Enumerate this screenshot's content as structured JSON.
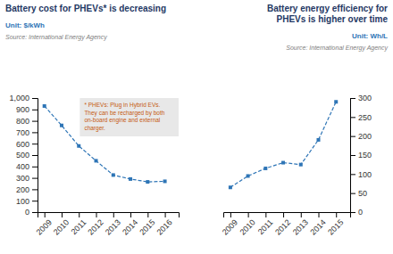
{
  "chart_data": [
    {
      "type": "line",
      "title": "Battery cost for PHEVs* is decreasing",
      "subtitle": "Unit: $/kWh",
      "annotations": [
        "Source: International Energy Agency",
        "* PHEVs: Plug in Hybrid EVs.\nThey can be recharged by both\non-board engine and external\ncharger."
      ],
      "x": [
        2009,
        2010,
        2011,
        2012,
        2013,
        2014,
        2015,
        2016
      ],
      "values": [
        930,
        760,
        580,
        450,
        325,
        290,
        265,
        270
      ],
      "xlim": [
        2008.6,
        2016.8
      ],
      "xticks": [
        2009,
        2010,
        2011,
        2012,
        2013,
        2014,
        2015,
        2016
      ],
      "ylim": [
        0,
        1000
      ],
      "yticks": [
        0,
        100,
        200,
        300,
        400,
        500,
        600,
        700,
        800,
        900,
        {
          "value": 1000,
          "label": "1,000"
        }
      ],
      "color": "#2E75B6",
      "marker": "square",
      "line_style": "dashed",
      "grid": false
    },
    {
      "type": "line",
      "title": "Battery energy efficiency for\nPHEVs is higher over time",
      "subtitle": "Unit: Wh/L",
      "annotations": [
        "Source: International Energy Agency"
      ],
      "x": [
        2009,
        2010,
        2011,
        2012,
        2013,
        2014,
        2015
      ],
      "values": [
        65,
        95,
        115,
        130,
        125,
        190,
        290
      ],
      "xlim": [
        2008.6,
        2015.8
      ],
      "xticks": [
        2009,
        2010,
        2011,
        2012,
        2013,
        2014,
        2015
      ],
      "ylim": [
        0,
        300
      ],
      "yticks": [
        0,
        50,
        100,
        150,
        200,
        250,
        300
      ],
      "color": "#2E75B6",
      "marker": "square",
      "line_style": "dashed",
      "grid": false
    }
  ]
}
